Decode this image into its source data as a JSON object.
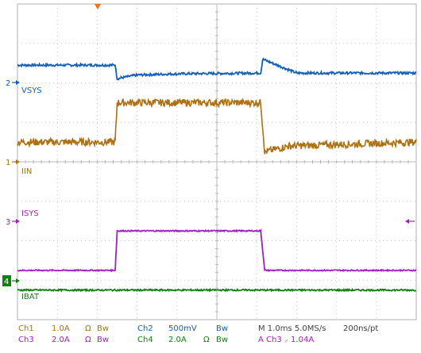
{
  "chart_data": {
    "type": "line",
    "xlim": [
      0,
      10
    ],
    "ylim": [
      -4,
      4
    ],
    "grid": true,
    "series": [
      {
        "name": "VSYS",
        "channel": "2",
        "color": "#1060c0",
        "values": [
          [
            0,
            2.45
          ],
          [
            2.45,
            2.45
          ],
          [
            2.5,
            2.1
          ],
          [
            2.6,
            2.13
          ],
          [
            3,
            2.2
          ],
          [
            4,
            2.23
          ],
          [
            6.1,
            2.25
          ],
          [
            6.15,
            2.6
          ],
          [
            7,
            2.25
          ],
          [
            10,
            2.25
          ]
        ]
      },
      {
        "name": "IIN",
        "channel": "1",
        "color": "#b07010",
        "values": [
          [
            0,
            0.5
          ],
          [
            2.45,
            0.5
          ],
          [
            2.5,
            1.5
          ],
          [
            6.1,
            1.5
          ],
          [
            6.2,
            0.25
          ],
          [
            6.8,
            0.4
          ],
          [
            10,
            0.5
          ]
        ]
      },
      {
        "name": "ISYS",
        "channel": "3",
        "color": "#a020c0",
        "values": [
          [
            0,
            -2.75
          ],
          [
            2.45,
            -2.75
          ],
          [
            2.5,
            -1.75
          ],
          [
            6.1,
            -1.75
          ],
          [
            6.2,
            -2.75
          ],
          [
            10,
            -2.75
          ]
        ]
      },
      {
        "name": "IBAT",
        "channel": "4",
        "color": "#108010",
        "values": [
          [
            0,
            -3.25
          ],
          [
            10,
            -3.25
          ]
        ]
      }
    ]
  },
  "markers": {
    "ch2": "2",
    "ch1": "1",
    "ch3": "3",
    "ch4": "4"
  },
  "labels": {
    "vsys": "VSYS",
    "iin": "IIN",
    "isys": "ISYS",
    "ibat": "IBAT"
  },
  "status": {
    "ch1": "Ch1",
    "ch1_scale": "1.0A",
    "ch1_unit": "Ω",
    "ch1_bw": "Bw",
    "ch2": "Ch2",
    "ch2_scale": "500mV",
    "ch2_bw": "Bw",
    "timebase": "M 1.0ms 5.0MS/s",
    "resolution": "200ns/pt",
    "ch3": "Ch3",
    "ch3_scale": "2.0A",
    "ch3_unit": "Ω",
    "ch3_bw": "Bw",
    "ch4": "Ch4",
    "ch4_scale": "2.0A",
    "ch4_unit": "Ω",
    "ch4_bw": "Bw",
    "trigger": "A  Ch3  ⸝  1.04A"
  }
}
